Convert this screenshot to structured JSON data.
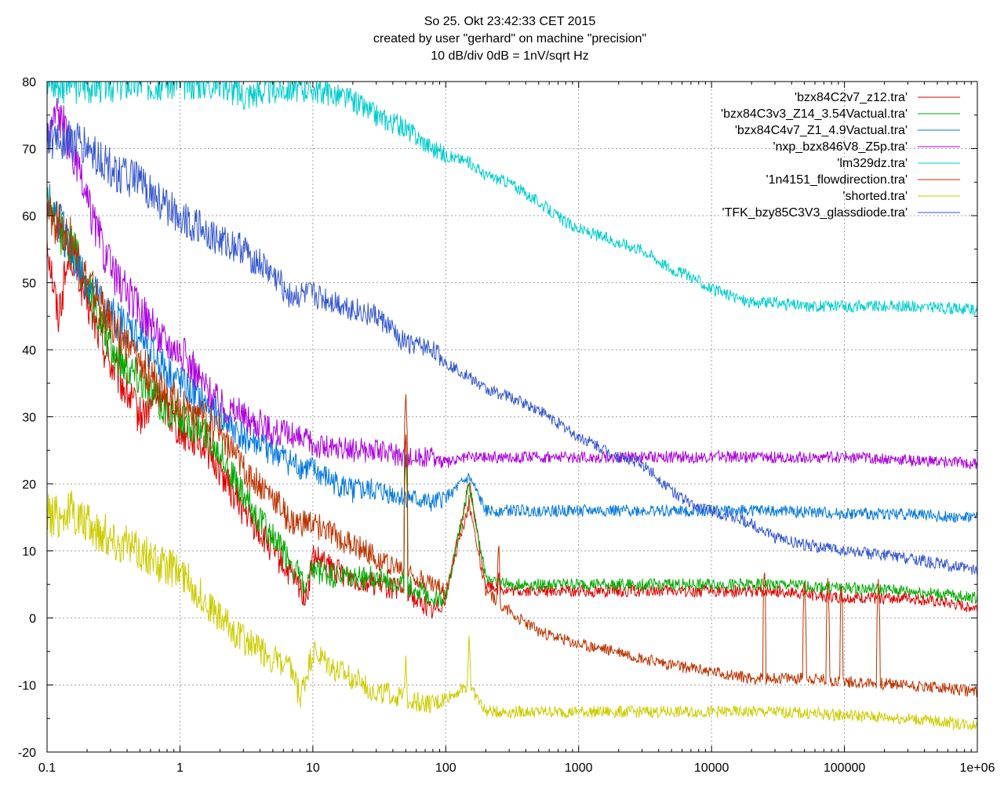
{
  "chart_data": {
    "type": "line",
    "title": [
      "So 25. Okt 23:42:33 CET 2015",
      "created by user \"gerhard\" on machine \"precision\"",
      "10 dB/div   0dB = 1nV/sqrt Hz"
    ],
    "xlabel": "",
    "ylabel": "",
    "x_scale": "log",
    "xlim": [
      0.1,
      1000000
    ],
    "ylim": [
      -20,
      80
    ],
    "grid": true,
    "legend_position": "top-right",
    "x_ticks": [
      {
        "value": 0.1,
        "label": "0.1"
      },
      {
        "value": 1,
        "label": "1"
      },
      {
        "value": 10,
        "label": "10"
      },
      {
        "value": 100,
        "label": "100"
      },
      {
        "value": 1000,
        "label": "1000"
      },
      {
        "value": 10000,
        "label": "10000"
      },
      {
        "value": 100000,
        "label": "100000"
      },
      {
        "value": 1000000,
        "label": "1e+06"
      }
    ],
    "y_ticks": [
      {
        "value": -20,
        "label": "-20"
      },
      {
        "value": -10,
        "label": "-10"
      },
      {
        "value": 0,
        "label": "0"
      },
      {
        "value": 10,
        "label": "10"
      },
      {
        "value": 20,
        "label": "20"
      },
      {
        "value": 30,
        "label": "30"
      },
      {
        "value": 40,
        "label": "40"
      },
      {
        "value": 50,
        "label": "50"
      },
      {
        "value": 60,
        "label": "60"
      },
      {
        "value": 70,
        "label": "70"
      },
      {
        "value": 80,
        "label": "80"
      }
    ],
    "series": [
      {
        "name": "'bzx84C2v7_z12.tra'",
        "color": "#dd0000",
        "points": [
          [
            0.1,
            57
          ],
          [
            0.12,
            45
          ],
          [
            0.15,
            55
          ],
          [
            0.2,
            47
          ],
          [
            0.3,
            38
          ],
          [
            0.5,
            30
          ],
          [
            0.7,
            33
          ],
          [
            1,
            28
          ],
          [
            1.5,
            26
          ],
          [
            2,
            22
          ],
          [
            3,
            16
          ],
          [
            5,
            10
          ],
          [
            7,
            6
          ],
          [
            9,
            3
          ],
          [
            10,
            9
          ],
          [
            15,
            7
          ],
          [
            20,
            6
          ],
          [
            30,
            5
          ],
          [
            50,
            4
          ],
          [
            80,
            1
          ],
          [
            100,
            3
          ],
          [
            150,
            20
          ],
          [
            200,
            5
          ],
          [
            300,
            4
          ],
          [
            500,
            4
          ],
          [
            1000,
            4
          ],
          [
            3000,
            4
          ],
          [
            10000,
            4
          ],
          [
            30000,
            4
          ],
          [
            100000,
            3
          ],
          [
            300000,
            3
          ],
          [
            1000000,
            1.5
          ]
        ],
        "spikes": [
          [
            50,
            28
          ],
          [
            150,
            20
          ],
          [
            250,
            8
          ]
        ]
      },
      {
        "name": "'bzx84C3v3_Z14_3.54Vactual.tra'",
        "color": "#00aa00",
        "points": [
          [
            0.1,
            63
          ],
          [
            0.12,
            58
          ],
          [
            0.15,
            56
          ],
          [
            0.2,
            50
          ],
          [
            0.3,
            40
          ],
          [
            0.5,
            36
          ],
          [
            0.7,
            32
          ],
          [
            1,
            30
          ],
          [
            1.5,
            28
          ],
          [
            2,
            25
          ],
          [
            3,
            18
          ],
          [
            5,
            12
          ],
          [
            7,
            8
          ],
          [
            9,
            4
          ],
          [
            10,
            7
          ],
          [
            15,
            6
          ],
          [
            20,
            6
          ],
          [
            30,
            6
          ],
          [
            50,
            5
          ],
          [
            80,
            3
          ],
          [
            100,
            3
          ],
          [
            150,
            20
          ],
          [
            200,
            6
          ],
          [
            300,
            5
          ],
          [
            500,
            5
          ],
          [
            1000,
            5
          ],
          [
            3000,
            5
          ],
          [
            10000,
            5
          ],
          [
            30000,
            5
          ],
          [
            100000,
            4.5
          ],
          [
            300000,
            4
          ],
          [
            1000000,
            3
          ]
        ],
        "spikes": [
          [
            50,
            25
          ],
          [
            150,
            19
          ]
        ]
      },
      {
        "name": "'bzx84C4v7_Z1_4.9Vactual.tra'",
        "color": "#0077dd",
        "points": [
          [
            0.1,
            62
          ],
          [
            0.12,
            60
          ],
          [
            0.15,
            55
          ],
          [
            0.2,
            50
          ],
          [
            0.3,
            45
          ],
          [
            0.5,
            42
          ],
          [
            0.7,
            38
          ],
          [
            1,
            35
          ],
          [
            1.5,
            32
          ],
          [
            2,
            30
          ],
          [
            3,
            27
          ],
          [
            5,
            25
          ],
          [
            7,
            23
          ],
          [
            10,
            22
          ],
          [
            15,
            20
          ],
          [
            20,
            19
          ],
          [
            30,
            19
          ],
          [
            50,
            18
          ],
          [
            80,
            17
          ],
          [
            100,
            18
          ],
          [
            150,
            21
          ],
          [
            200,
            16
          ],
          [
            300,
            16
          ],
          [
            500,
            16
          ],
          [
            1000,
            16
          ],
          [
            3000,
            16
          ],
          [
            10000,
            16
          ],
          [
            30000,
            16
          ],
          [
            100000,
            15.5
          ],
          [
            300000,
            15.5
          ],
          [
            1000000,
            15
          ]
        ]
      },
      {
        "name": "'nxp_bzx846V8_Z5p.tra'",
        "color": "#aa00dd",
        "points": [
          [
            0.1,
            72
          ],
          [
            0.12,
            76
          ],
          [
            0.15,
            70
          ],
          [
            0.2,
            62
          ],
          [
            0.3,
            52
          ],
          [
            0.5,
            46
          ],
          [
            0.7,
            42
          ],
          [
            1,
            40
          ],
          [
            1.5,
            35
          ],
          [
            2,
            32
          ],
          [
            3,
            30
          ],
          [
            5,
            28
          ],
          [
            7,
            27
          ],
          [
            10,
            26
          ],
          [
            15,
            25
          ],
          [
            20,
            25
          ],
          [
            30,
            25
          ],
          [
            50,
            24
          ],
          [
            80,
            24
          ],
          [
            100,
            23
          ],
          [
            150,
            24
          ],
          [
            200,
            24
          ],
          [
            300,
            24
          ],
          [
            500,
            24
          ],
          [
            1000,
            24
          ],
          [
            3000,
            24
          ],
          [
            10000,
            24
          ],
          [
            30000,
            24
          ],
          [
            100000,
            24
          ],
          [
            300000,
            23.5
          ],
          [
            1000000,
            23
          ]
        ]
      },
      {
        "name": "'lm329dz.tra'",
        "color": "#00cccc",
        "points": [
          [
            0.1,
            80
          ],
          [
            0.5,
            80
          ],
          [
            1,
            80
          ],
          [
            2,
            80
          ],
          [
            3,
            78
          ],
          [
            5,
            79
          ],
          [
            7,
            79
          ],
          [
            10,
            79
          ],
          [
            15,
            78
          ],
          [
            20,
            77
          ],
          [
            30,
            75
          ],
          [
            50,
            73
          ],
          [
            80,
            70
          ],
          [
            100,
            69
          ],
          [
            150,
            68
          ],
          [
            200,
            66
          ],
          [
            300,
            65
          ],
          [
            500,
            62
          ],
          [
            800,
            59
          ],
          [
            1000,
            58
          ],
          [
            2000,
            56
          ],
          [
            3000,
            55
          ],
          [
            5000,
            52
          ],
          [
            7000,
            51
          ],
          [
            10000,
            49
          ],
          [
            20000,
            47
          ],
          [
            30000,
            47
          ],
          [
            50000,
            46.5
          ],
          [
            100000,
            46.5
          ],
          [
            300000,
            46.5
          ],
          [
            1000000,
            46
          ]
        ]
      },
      {
        "name": "'1n4151_flowdirection.tra'",
        "color": "#bb3300",
        "points": [
          [
            0.1,
            60
          ],
          [
            0.15,
            57
          ],
          [
            0.2,
            50
          ],
          [
            0.3,
            44
          ],
          [
            0.5,
            38
          ],
          [
            0.7,
            35
          ],
          [
            1,
            32
          ],
          [
            1.5,
            30
          ],
          [
            2,
            28
          ],
          [
            3,
            22
          ],
          [
            5,
            18
          ],
          [
            7,
            14
          ],
          [
            10,
            14
          ],
          [
            15,
            12
          ],
          [
            20,
            11
          ],
          [
            30,
            9
          ],
          [
            50,
            7
          ],
          [
            80,
            5
          ],
          [
            100,
            4
          ],
          [
            150,
            17
          ],
          [
            200,
            4
          ],
          [
            300,
            1
          ],
          [
            500,
            -2
          ],
          [
            1000,
            -4
          ],
          [
            2000,
            -5
          ],
          [
            3000,
            -6
          ],
          [
            5000,
            -7
          ],
          [
            10000,
            -8
          ],
          [
            20000,
            -9
          ],
          [
            30000,
            -9
          ],
          [
            50000,
            -9
          ],
          [
            100000,
            -9.5
          ],
          [
            300000,
            -10
          ],
          [
            1000000,
            -11
          ]
        ],
        "spikes": [
          [
            50,
            34
          ],
          [
            150,
            19
          ],
          [
            250,
            12
          ],
          [
            25000,
            8
          ],
          [
            50000,
            6
          ],
          [
            75000,
            6
          ],
          [
            95000,
            6
          ],
          [
            180000,
            6
          ]
        ]
      },
      {
        "name": "'shorted.tra'",
        "color": "#cccc00",
        "points": [
          [
            0.1,
            15
          ],
          [
            0.15,
            16
          ],
          [
            0.2,
            14
          ],
          [
            0.3,
            12
          ],
          [
            0.5,
            10
          ],
          [
            0.7,
            8
          ],
          [
            1,
            7
          ],
          [
            1.5,
            3
          ],
          [
            2,
            0
          ],
          [
            3,
            -3
          ],
          [
            5,
            -6
          ],
          [
            7,
            -8
          ],
          [
            8,
            -12
          ],
          [
            10,
            -5
          ],
          [
            15,
            -8
          ],
          [
            20,
            -9
          ],
          [
            30,
            -11
          ],
          [
            50,
            -12
          ],
          [
            80,
            -13
          ],
          [
            100,
            -12
          ],
          [
            150,
            -10
          ],
          [
            200,
            -14
          ],
          [
            300,
            -14
          ],
          [
            500,
            -14
          ],
          [
            1000,
            -14
          ],
          [
            3000,
            -14
          ],
          [
            10000,
            -14
          ],
          [
            30000,
            -14
          ],
          [
            100000,
            -14.5
          ],
          [
            300000,
            -15
          ],
          [
            1000000,
            -16
          ]
        ],
        "spikes": [
          [
            50,
            -5
          ],
          [
            150,
            -2
          ]
        ]
      },
      {
        "name": "'TFK_bzy85C3V3_glassdiode.tra'",
        "color": "#3355cc",
        "points": [
          [
            0.1,
            72
          ],
          [
            0.15,
            71
          ],
          [
            0.2,
            70
          ],
          [
            0.3,
            67
          ],
          [
            0.5,
            65
          ],
          [
            0.7,
            62
          ],
          [
            1,
            60
          ],
          [
            1.5,
            58
          ],
          [
            2,
            56
          ],
          [
            3,
            55
          ],
          [
            5,
            51
          ],
          [
            7,
            48
          ],
          [
            10,
            48
          ],
          [
            15,
            47
          ],
          [
            20,
            46
          ],
          [
            30,
            45
          ],
          [
            50,
            41
          ],
          [
            80,
            40
          ],
          [
            100,
            38
          ],
          [
            150,
            36
          ],
          [
            200,
            34
          ],
          [
            300,
            33
          ],
          [
            500,
            31
          ],
          [
            1000,
            27
          ],
          [
            2000,
            24
          ],
          [
            3000,
            23
          ],
          [
            5000,
            19
          ],
          [
            7000,
            17
          ],
          [
            10000,
            16
          ],
          [
            20000,
            14
          ],
          [
            30000,
            12
          ],
          [
            50000,
            11
          ],
          [
            100000,
            10
          ],
          [
            300000,
            9
          ],
          [
            1000000,
            7
          ]
        ]
      }
    ]
  }
}
